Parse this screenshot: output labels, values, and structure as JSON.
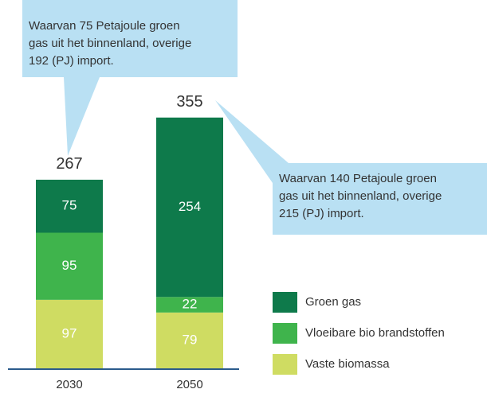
{
  "chart_data": {
    "type": "stacked_bar",
    "categories": [
      "2030",
      "2050"
    ],
    "series": [
      {
        "name": "Vaste biomassa",
        "color": "#cfdc62",
        "values": [
          97,
          79
        ]
      },
      {
        "name": "Vloeibare bio brandstoffen",
        "color": "#3fb44c",
        "values": [
          95,
          22
        ]
      },
      {
        "name": "Groen gas",
        "color": "#0e7a4b",
        "values": [
          75,
          254
        ]
      }
    ],
    "totals": [
      267,
      355
    ],
    "annotations": [
      {
        "lines": [
          "Waarvan 75 Petajoule groen",
          "gas uit het binnenland, overige",
          "192 (PJ) import."
        ]
      },
      {
        "lines": [
          "Waarvan 140 Petajoule groen",
          "gas uit het binnenland, overige",
          "215 (PJ) import."
        ]
      }
    ]
  }
}
